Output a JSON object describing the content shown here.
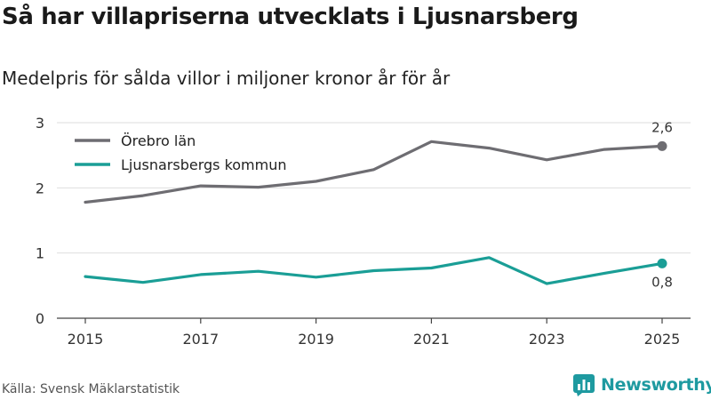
{
  "header": {
    "title": "Så har villapriserna utvecklats i Ljusnarsberg",
    "subtitle": "Medelpris för sålda villor i miljoner kronor år för år"
  },
  "footer": {
    "source": "Källa: Svensk Mäklarstatistik",
    "brand": "Newsworthy",
    "brand_icon": "bar-chart-logo-icon",
    "brand_color": "#1e9aa0"
  },
  "chart_data": {
    "type": "line",
    "title": "Så har villapriserna utvecklats i Ljusnarsberg",
    "subtitle": "Medelpris för sålda villor i miljoner kronor år för år",
    "xlabel": "",
    "ylabel": "",
    "x": [
      2015,
      2016,
      2017,
      2018,
      2019,
      2020,
      2021,
      2022,
      2023,
      2024,
      2025
    ],
    "x_ticks": [
      "2015",
      "2017",
      "2019",
      "2021",
      "2023",
      "2025"
    ],
    "y_ticks": [
      "0",
      "1",
      "2",
      "3"
    ],
    "ylim": [
      0,
      3
    ],
    "grid": true,
    "legend_position": "top-left",
    "series": [
      {
        "name": "Örebro län",
        "color": "#6e6d72",
        "values": [
          1.78,
          1.88,
          2.03,
          2.01,
          2.1,
          2.28,
          2.71,
          2.61,
          2.43,
          2.59,
          2.64
        ],
        "end_label": "2,6"
      },
      {
        "name": "Ljusnarsbergs kommun",
        "color": "#1a9e96",
        "values": [
          0.64,
          0.55,
          0.67,
          0.72,
          0.63,
          0.73,
          0.77,
          0.93,
          0.53,
          0.69,
          0.84
        ],
        "end_label": "0,8"
      }
    ]
  }
}
